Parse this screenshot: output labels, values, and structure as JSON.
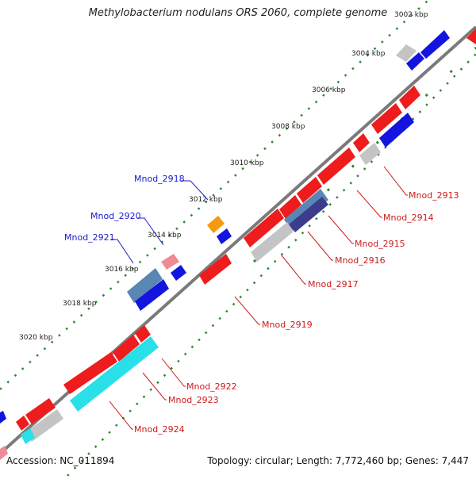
{
  "title": "Methylobacterium nodulans ORS 2060, complete genome",
  "footer": {
    "accession": "Accession: NC_011894",
    "summary": "Topology: circular; Length: 7,772,460 bp; Genes: 7,447"
  },
  "colors": {
    "backbone": "#7a7a7a",
    "tick": "#2a8a2a",
    "label_forward": "#1a1acc",
    "label_reverse": "#cc1a1a",
    "gene_red": "#ee1c1c",
    "gene_blue": "#1414e0",
    "gene_gray": "#c4c4c4",
    "gene_steel": "#5a86b4",
    "gene_cyan": "#2ae0e8",
    "gene_orange": "#f59a10",
    "gene_pink": "#f08a96",
    "gene_navy": "#3c3c8c"
  },
  "kbp_labels": [
    "3002 kbp",
    "3004 kbp",
    "3006 kbp",
    "3008 kbp",
    "3010 kbp",
    "3012 kbp",
    "3014 kbp",
    "3016 kbp",
    "3018 kbp",
    "3020 kbp"
  ],
  "gene_labels": {
    "forward": [
      "Mnod_2918",
      "Mnod_2920",
      "Mnod_2921"
    ],
    "reverse": [
      "Mnod_2913",
      "Mnod_2914",
      "Mnod_2915",
      "Mnod_2916",
      "Mnod_2917",
      "Mnod_2919",
      "Mnod_2922",
      "Mnod_2923",
      "Mnod_2924"
    ]
  }
}
